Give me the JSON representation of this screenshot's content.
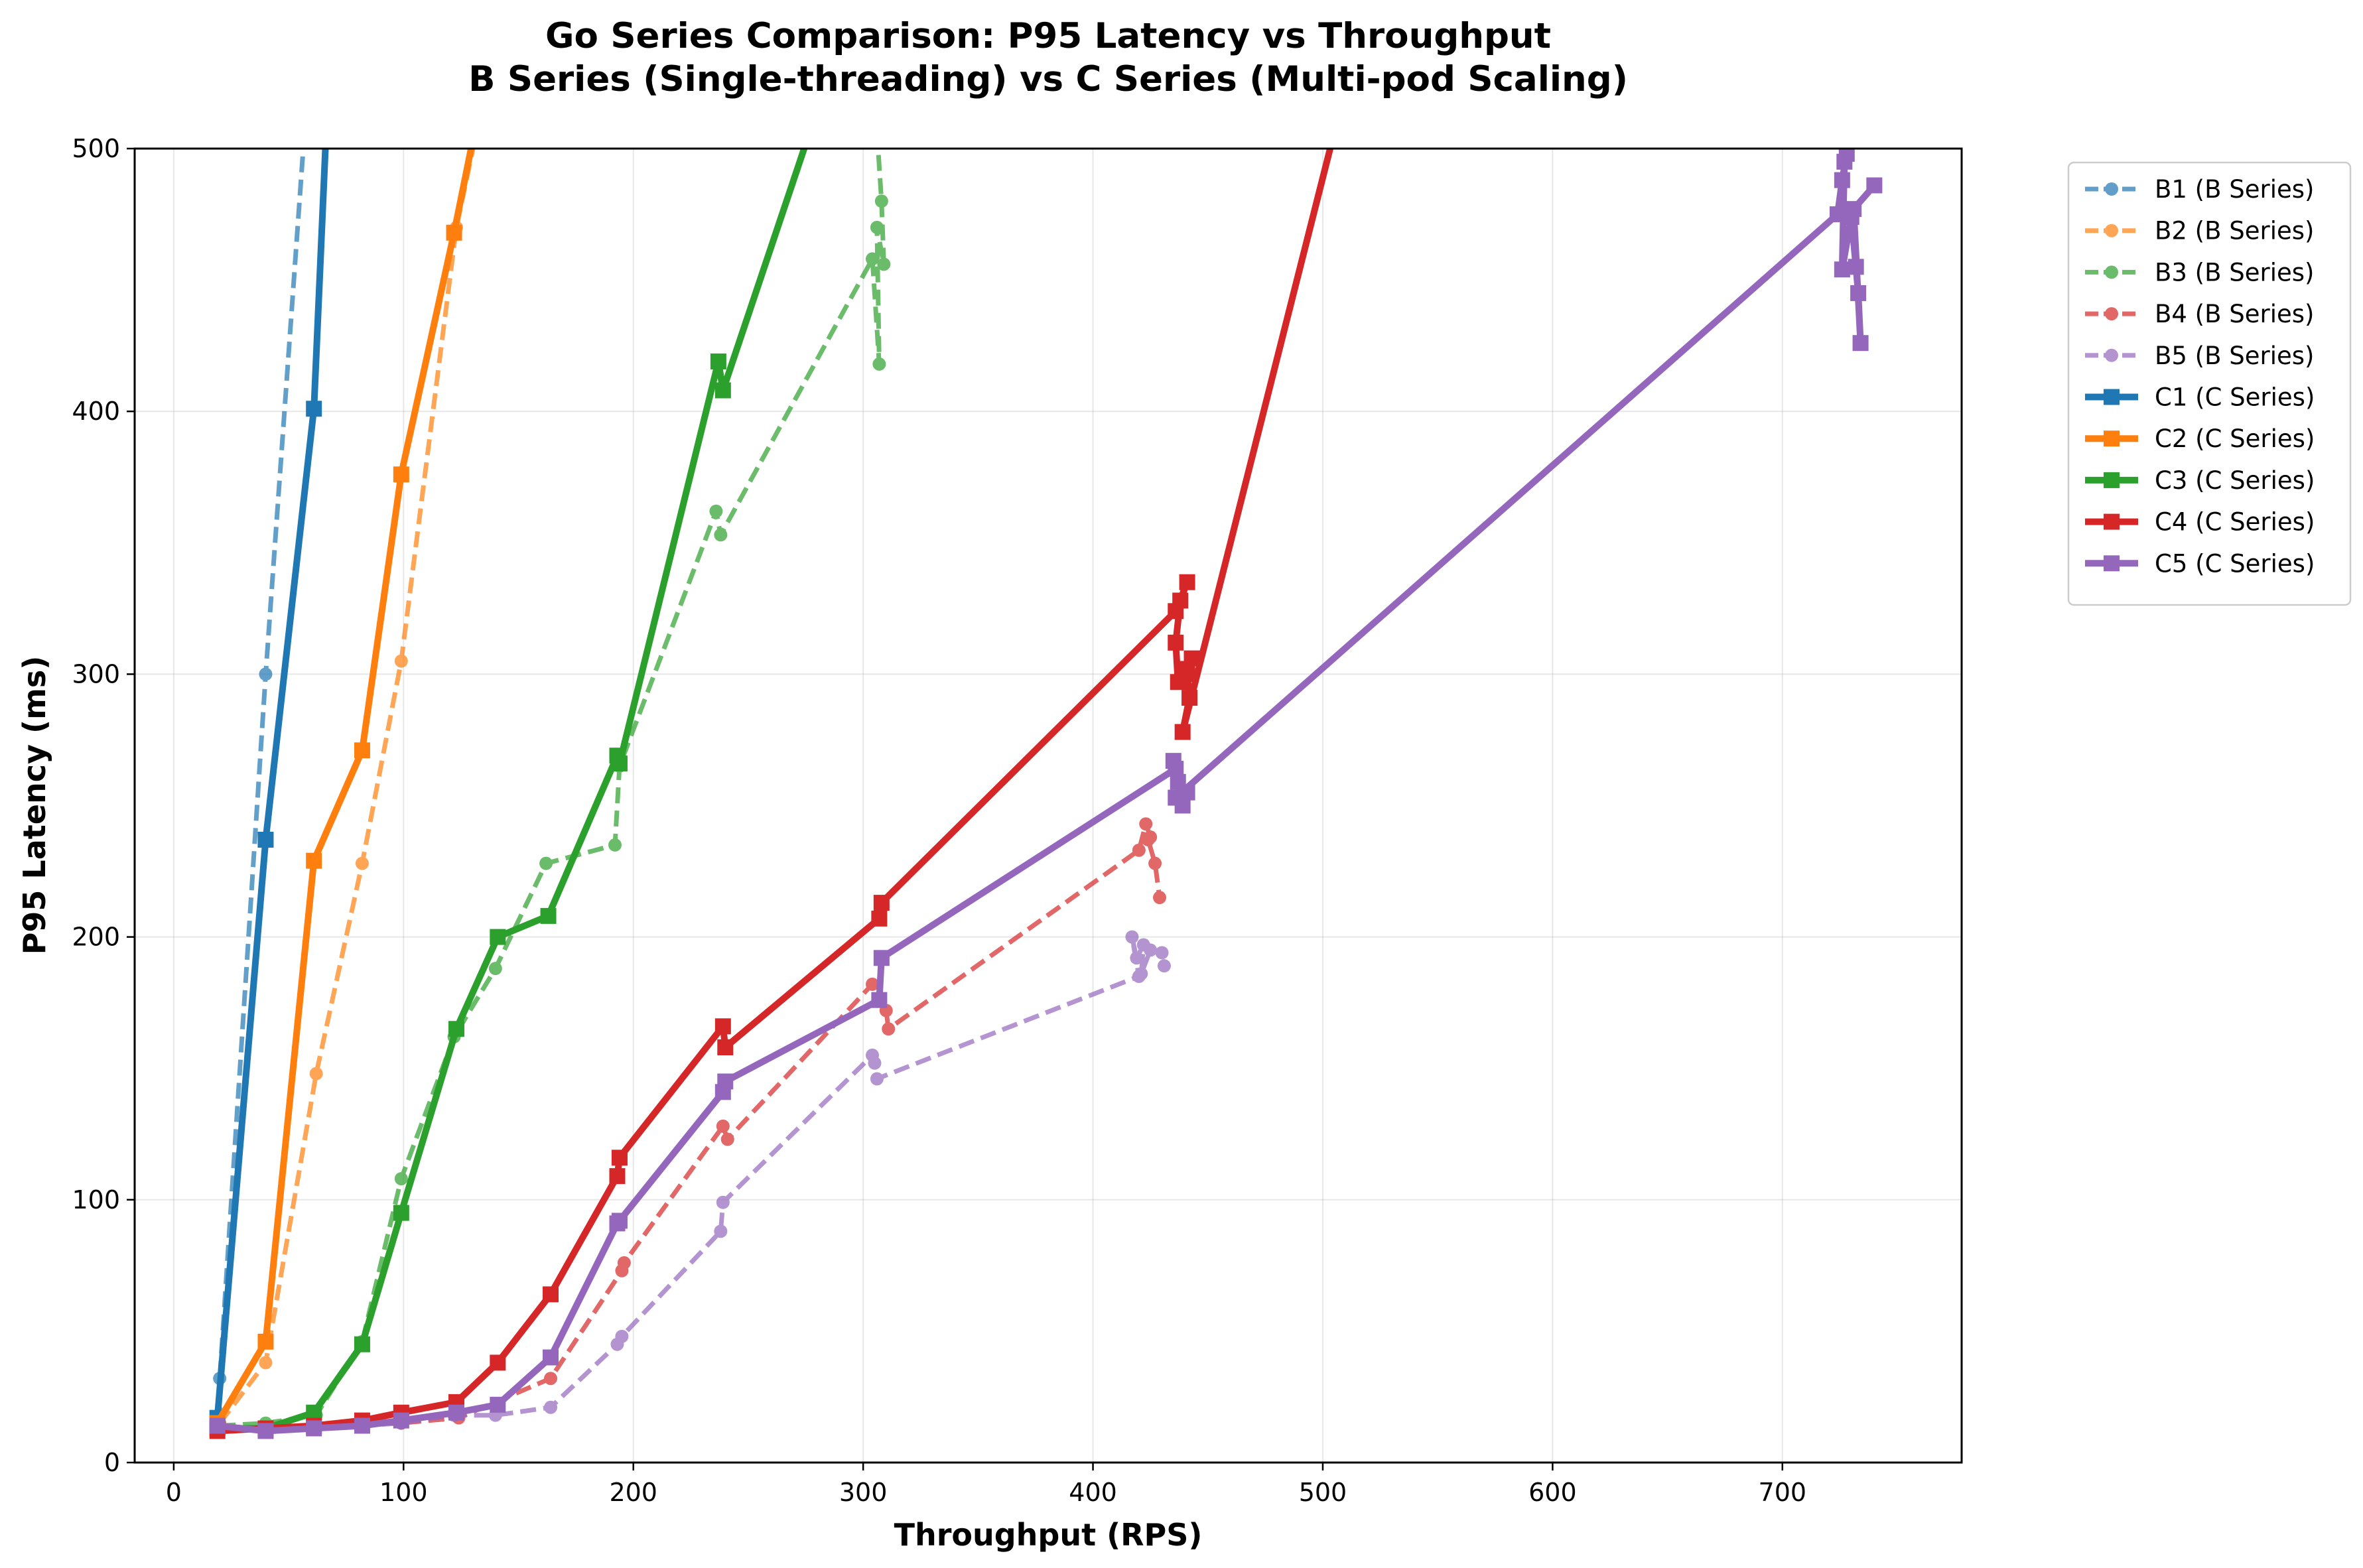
{
  "chart_data": {
    "type": "line",
    "title": "Go Series Comparison: P95 Latency vs Throughput",
    "subtitle": "B Series (Single-threading) vs C Series (Multi-pod Scaling)",
    "xlabel": "Throughput (RPS)",
    "ylabel": "P95 Latency (ms)",
    "xlim": [
      -17,
      778
    ],
    "ylim": [
      0,
      500
    ],
    "x_ticks": [
      0,
      100,
      200,
      300,
      400,
      500,
      600,
      700
    ],
    "y_ticks": [
      0,
      100,
      200,
      300,
      400,
      500
    ],
    "grid": true,
    "legend_position": "outside-top-right",
    "series": [
      {
        "name": "B1 (B Series)",
        "color": "#1f77b4",
        "style": "dashed",
        "marker": "circle",
        "points": [
          [
            20,
            15
          ],
          [
            20,
            32
          ],
          [
            40,
            300
          ],
          [
            58,
            520
          ]
        ]
      },
      {
        "name": "B2 (B Series)",
        "color": "#ff7f0e",
        "style": "dashed",
        "marker": "circle",
        "points": [
          [
            20,
            15
          ],
          [
            40,
            38
          ],
          [
            62,
            148
          ],
          [
            82,
            228
          ],
          [
            99,
            305
          ],
          [
            123,
            470
          ],
          [
            135,
            520
          ]
        ]
      },
      {
        "name": "B3 (B Series)",
        "color": "#2ca02c",
        "style": "dashed",
        "marker": "circle",
        "points": [
          [
            20,
            14
          ],
          [
            40,
            15
          ],
          [
            62,
            18
          ],
          [
            82,
            46
          ],
          [
            99,
            108
          ],
          [
            122,
            162
          ],
          [
            140,
            188
          ],
          [
            162,
            228
          ],
          [
            192,
            235
          ],
          [
            194,
            265
          ],
          [
            236,
            362
          ],
          [
            238,
            353
          ],
          [
            304,
            458
          ],
          [
            307,
            418
          ],
          [
            306,
            470
          ],
          [
            309,
            456
          ],
          [
            308,
            480
          ],
          [
            305,
            520
          ]
        ]
      },
      {
        "name": "B4 (B Series)",
        "color": "#d62728",
        "style": "dashed",
        "marker": "circle",
        "points": [
          [
            20,
            13
          ],
          [
            40,
            13
          ],
          [
            62,
            14
          ],
          [
            82,
            15
          ],
          [
            99,
            15
          ],
          [
            124,
            17
          ],
          [
            164,
            32
          ],
          [
            195,
            73
          ],
          [
            196,
            76
          ],
          [
            239,
            128
          ],
          [
            241,
            123
          ],
          [
            304,
            182
          ],
          [
            310,
            172
          ],
          [
            311,
            165
          ],
          [
            420,
            233
          ],
          [
            423,
            243
          ],
          [
            425,
            238
          ],
          [
            424,
            237
          ],
          [
            427,
            228
          ],
          [
            429,
            215
          ]
        ]
      },
      {
        "name": "B5 (B Series)",
        "color": "#9467bd",
        "style": "dashed",
        "marker": "circle",
        "points": [
          [
            20,
            13
          ],
          [
            40,
            12
          ],
          [
            62,
            14
          ],
          [
            82,
            14
          ],
          [
            99,
            15
          ],
          [
            122,
            18
          ],
          [
            140,
            18
          ],
          [
            164,
            21
          ],
          [
            193,
            45
          ],
          [
            195,
            48
          ],
          [
            238,
            88
          ],
          [
            239,
            99
          ],
          [
            304,
            155
          ],
          [
            305,
            152
          ],
          [
            306,
            146
          ],
          [
            420,
            185
          ],
          [
            417,
            200
          ],
          [
            419,
            192
          ],
          [
            422,
            197
          ],
          [
            421,
            186
          ],
          [
            425,
            195
          ],
          [
            430,
            194
          ],
          [
            431,
            189
          ]
        ]
      },
      {
        "name": "C1 (C Series)",
        "color": "#1f77b4",
        "style": "solid",
        "marker": "square",
        "points": [
          [
            19,
            17
          ],
          [
            40,
            237
          ],
          [
            61,
            401
          ],
          [
            67,
            520
          ]
        ]
      },
      {
        "name": "C2 (C Series)",
        "color": "#ff7f0e",
        "style": "solid",
        "marker": "square",
        "points": [
          [
            19,
            15
          ],
          [
            40,
            46
          ],
          [
            61,
            229
          ],
          [
            82,
            271
          ],
          [
            99,
            376
          ],
          [
            122,
            468
          ],
          [
            134,
            520
          ]
        ]
      },
      {
        "name": "C3 (C Series)",
        "color": "#2ca02c",
        "style": "solid",
        "marker": "square",
        "points": [
          [
            19,
            13
          ],
          [
            40,
            13
          ],
          [
            61,
            19
          ],
          [
            82,
            45
          ],
          [
            99,
            95
          ],
          [
            123,
            165
          ],
          [
            141,
            200
          ],
          [
            163,
            208
          ],
          [
            193,
            269
          ],
          [
            194,
            266
          ],
          [
            237,
            419
          ],
          [
            239,
            408
          ],
          [
            282,
            520
          ]
        ]
      },
      {
        "name": "C4 (C Series)",
        "color": "#d62728",
        "style": "solid",
        "marker": "square",
        "points": [
          [
            19,
            12
          ],
          [
            40,
            13
          ],
          [
            61,
            14
          ],
          [
            82,
            16
          ],
          [
            99,
            19
          ],
          [
            123,
            23
          ],
          [
            141,
            38
          ],
          [
            164,
            64
          ],
          [
            193,
            109
          ],
          [
            194,
            116
          ],
          [
            239,
            166
          ],
          [
            240,
            158
          ],
          [
            307,
            207
          ],
          [
            308,
            213
          ],
          [
            436,
            324
          ],
          [
            441,
            335
          ],
          [
            438,
            328
          ],
          [
            436,
            312
          ],
          [
            437,
            297
          ],
          [
            440,
            302
          ],
          [
            443,
            306
          ],
          [
            441,
            300
          ],
          [
            442,
            291
          ],
          [
            439,
            278
          ],
          [
            509,
            520
          ]
        ]
      },
      {
        "name": "C5 (C Series)",
        "color": "#9467bd",
        "style": "solid",
        "marker": "square",
        "points": [
          [
            19,
            14
          ],
          [
            40,
            12
          ],
          [
            61,
            13
          ],
          [
            82,
            14
          ],
          [
            99,
            16
          ],
          [
            123,
            19
          ],
          [
            141,
            22
          ],
          [
            164,
            40
          ],
          [
            193,
            91
          ],
          [
            194,
            92
          ],
          [
            239,
            141
          ],
          [
            240,
            145
          ],
          [
            307,
            176
          ],
          [
            308,
            192
          ],
          [
            436,
            264
          ],
          [
            435,
            267
          ],
          [
            437,
            259
          ],
          [
            439,
            250
          ],
          [
            441,
            255
          ],
          [
            436,
            253
          ],
          [
            724,
            475
          ],
          [
            726,
            488
          ],
          [
            728,
            498
          ],
          [
            729,
            506
          ],
          [
            727,
            495
          ],
          [
            726,
            454
          ],
          [
            730,
            474
          ],
          [
            732,
            455
          ],
          [
            733,
            445
          ],
          [
            734,
            426
          ],
          [
            731,
            477
          ],
          [
            740,
            486
          ]
        ]
      }
    ]
  }
}
